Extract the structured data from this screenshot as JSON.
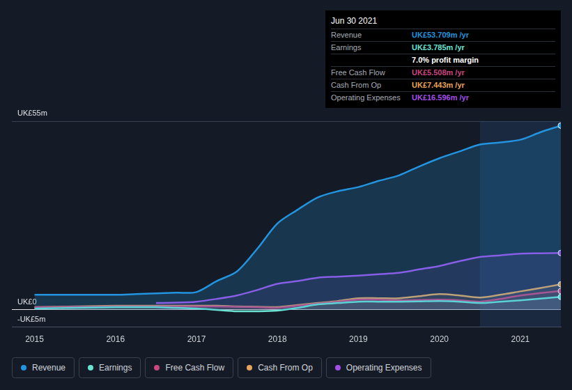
{
  "chart_data": {
    "type": "line",
    "x": [
      2015,
      2015.25,
      2015.5,
      2015.75,
      2016,
      2016.25,
      2016.5,
      2016.75,
      2017,
      2017.25,
      2017.5,
      2017.75,
      2018,
      2018.25,
      2018.5,
      2018.75,
      2019,
      2019.25,
      2019.5,
      2019.75,
      2020,
      2020.25,
      2020.5,
      2020.75,
      2021,
      2021.25,
      2021.5
    ],
    "series": [
      {
        "name": "Revenue",
        "color": "#2394df",
        "values": [
          4.4,
          4.4,
          4.4,
          4.4,
          4.4,
          4.6,
          4.8,
          5.0,
          5.2,
          8.4,
          11.2,
          17.8,
          25.2,
          29.2,
          32.8,
          34.6,
          35.8,
          37.6,
          39.2,
          41.8,
          44.2,
          46.2,
          48.2,
          48.8,
          49.6,
          51.8,
          53.709
        ]
      },
      {
        "name": "Earnings",
        "color": "#6be3d3",
        "values": [
          0.4,
          0.5,
          0.6,
          0.7,
          0.8,
          0.8,
          0.8,
          0.6,
          0.4,
          0,
          -0.4,
          -0.4,
          -0.2,
          0.6,
          1.6,
          2.0,
          2.4,
          2.4,
          2.4,
          2.5,
          2.6,
          2.4,
          2.0,
          2.4,
          2.8,
          3.3,
          3.785
        ]
      },
      {
        "name": "Free Cash Flow",
        "color": "#c9467f",
        "values": [
          0.8,
          0.8,
          0.9,
          0.9,
          1.0,
          1.0,
          1.0,
          1.0,
          1.0,
          1.0,
          0.9,
          0.8,
          0.6,
          1.2,
          1.8,
          2.4,
          3.0,
          3.0,
          2.8,
          2.9,
          3.0,
          2.8,
          2.4,
          3.2,
          4.2,
          4.9,
          5.508
        ]
      },
      {
        "name": "Cash From Op",
        "color": "#e8a45c",
        "values": [
          0.8,
          0.9,
          1.0,
          1.1,
          1.2,
          1.2,
          1.2,
          1.2,
          1.2,
          1.2,
          1.0,
          0.9,
          0.8,
          1.4,
          2.0,
          2.6,
          3.4,
          3.4,
          3.4,
          4.0,
          4.6,
          4.2,
          3.6,
          4.4,
          5.4,
          6.4,
          7.443
        ]
      },
      {
        "name": "Operating Expenses",
        "color": "#a34fe8",
        "values": [
          null,
          null,
          null,
          null,
          null,
          null,
          2.0,
          2.1,
          2.4,
          3.2,
          4.2,
          5.8,
          7.6,
          8.4,
          9.4,
          9.7,
          10.0,
          10.4,
          10.8,
          11.8,
          12.8,
          14.2,
          15.4,
          15.9,
          16.4,
          16.5,
          16.596
        ]
      }
    ],
    "xlim": [
      2014.72,
      2021.5
    ],
    "xticks": [
      2015,
      2016,
      2017,
      2018,
      2019,
      2020,
      2021
    ],
    "ylim": [
      -5,
      55
    ],
    "yticks": [
      {
        "value": -5,
        "label": "-UK£5m"
      },
      {
        "value": 0,
        "label": "UK£0"
      },
      {
        "value": 55,
        "label": "UK£55m"
      }
    ],
    "grid": true,
    "shaded_x": [
      2020.5,
      2021.5
    ],
    "tooltip": {
      "date": "Jun 30 2021",
      "rows": [
        {
          "label": "Revenue",
          "value": "UK£53.709m /yr"
        },
        {
          "label": "Earnings",
          "value": "UK£3.785m /yr"
        },
        {
          "value": "7.0% profit margin"
        },
        {
          "label": "Free Cash Flow",
          "value": "UK£5.508m /yr"
        },
        {
          "label": "Cash From Op",
          "value": "UK£7.443m /yr"
        },
        {
          "label": "Operating Expenses",
          "value": "UK£16.596m /yr"
        }
      ]
    }
  }
}
